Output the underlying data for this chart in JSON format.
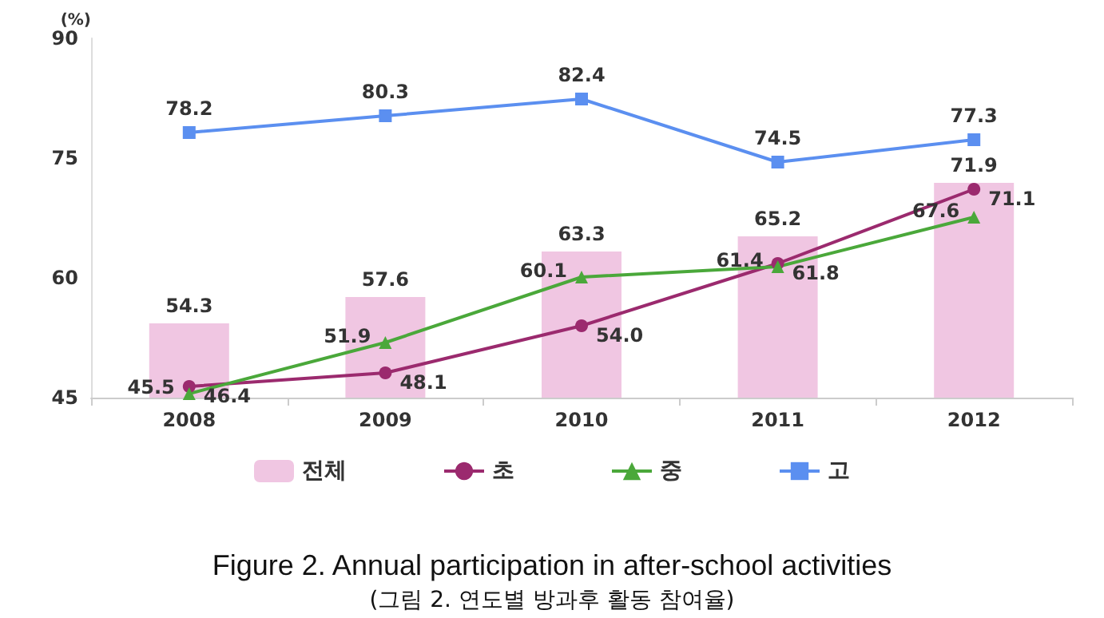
{
  "chart_data": {
    "type": "bar",
    "title": "Figure 2. Annual participation in after-school activities",
    "subtitle": "(그림 2. 연도별 방과후 활동 참여율)",
    "ylabel": "(%)",
    "categories": [
      "2008",
      "2009",
      "2010",
      "2011",
      "2012"
    ],
    "series": [
      {
        "name": "전체",
        "color": "#f0c6e2",
        "values": [
          54.3,
          57.6,
          63.3,
          65.2,
          71.9
        ]
      },
      {
        "name": "초",
        "type": "line",
        "color": "#9b2a6e",
        "marker": "circle",
        "values": [
          46.4,
          48.1,
          54.0,
          61.8,
          71.1
        ],
        "value_labels": [
          "46.4",
          "48.1",
          "54.0",
          "61.8",
          "71.1"
        ]
      },
      {
        "name": "중",
        "type": "line",
        "color": "#4aa83a",
        "marker": "triangle",
        "values": [
          45.5,
          51.9,
          60.1,
          61.4,
          67.6
        ]
      },
      {
        "name": "고",
        "type": "line",
        "color": "#5b8ff0",
        "marker": "square",
        "values": [
          78.2,
          80.3,
          82.4,
          74.5,
          77.3
        ]
      }
    ],
    "ylim": [
      45,
      90
    ],
    "yticks": [
      45,
      60,
      75,
      90
    ],
    "grid": false,
    "legend": "bottom",
    "data_labels": true
  }
}
